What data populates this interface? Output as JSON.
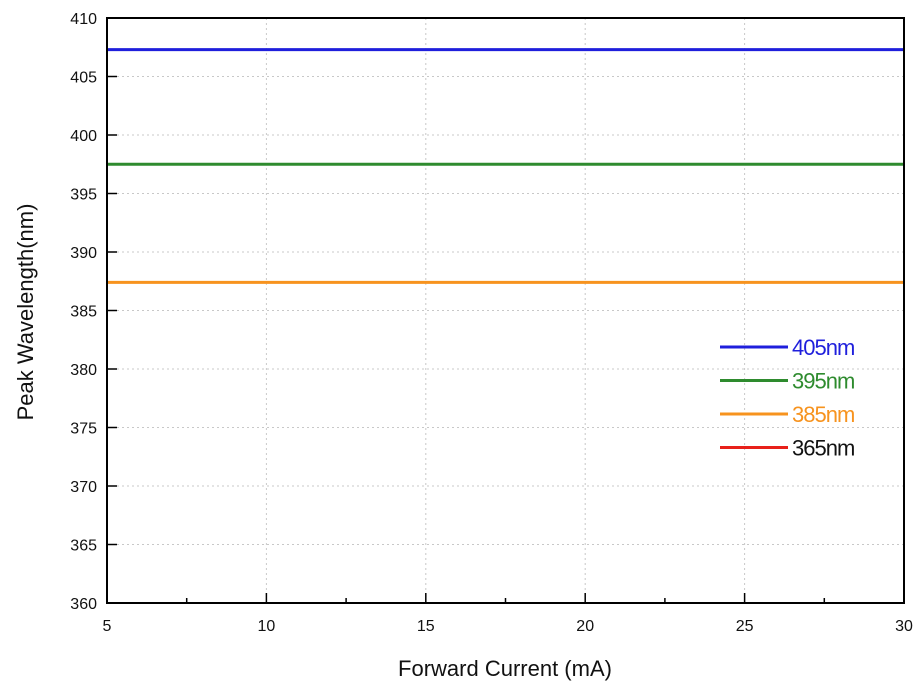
{
  "chart_data": {
    "type": "line",
    "xlabel": "Forward Current (mA)",
    "ylabel": "Peak Wavelength(nm)",
    "xlim": [
      5,
      30
    ],
    "ylim": [
      360,
      410
    ],
    "x_ticks": [
      5,
      10,
      15,
      20,
      25,
      30
    ],
    "y_ticks": [
      360,
      365,
      370,
      375,
      380,
      385,
      390,
      395,
      400,
      405,
      410
    ],
    "grid": true,
    "legend_position": "right",
    "series": [
      {
        "name": "405nm",
        "color": "#1f1fdc",
        "label_color": "#1f1fdc",
        "x": [
          5,
          30
        ],
        "y": [
          407.3,
          407.3
        ]
      },
      {
        "name": "395nm",
        "color": "#2e8b2e",
        "label_color": "#2e8b2e",
        "x": [
          5,
          30
        ],
        "y": [
          397.5,
          397.5
        ]
      },
      {
        "name": "385nm",
        "color": "#f7931e",
        "label_color": "#f7931e",
        "x": [
          5,
          30
        ],
        "y": [
          387.4,
          387.4
        ]
      },
      {
        "name": "365nm",
        "color": "#e8201a",
        "label_color": "#111111",
        "x": [],
        "y": []
      }
    ]
  }
}
